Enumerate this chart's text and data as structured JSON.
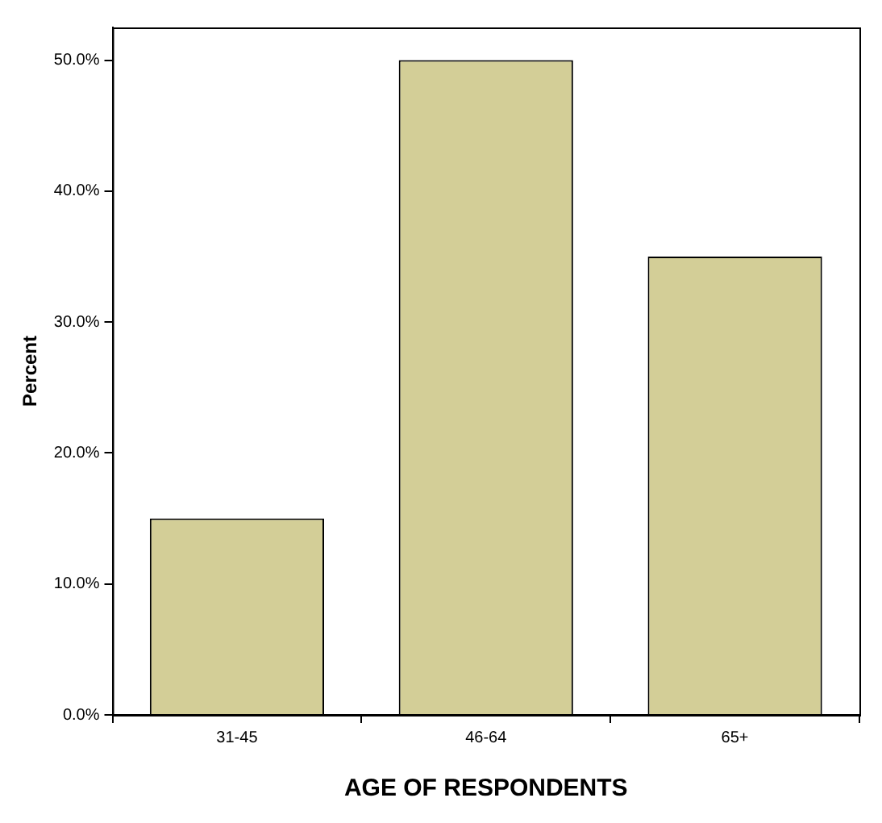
{
  "chart_data": {
    "type": "bar",
    "xlabel": "AGE OF RESPONDENTS",
    "ylabel": "Percent",
    "categories": [
      "31-45",
      "46-64",
      "65+"
    ],
    "values": [
      15,
      50,
      35
    ],
    "color": "#d3ce97",
    "ylim": [
      0,
      52.5
    ],
    "yticks": [
      {
        "value": 0,
        "label": "0.0%"
      },
      {
        "value": 10,
        "label": "10.0%"
      },
      {
        "value": 20,
        "label": "20.0%"
      },
      {
        "value": 30,
        "label": "30.0%"
      },
      {
        "value": 40,
        "label": "40.0%"
      },
      {
        "value": 50,
        "label": "50.0%"
      }
    ],
    "grid": false,
    "legend": false
  }
}
